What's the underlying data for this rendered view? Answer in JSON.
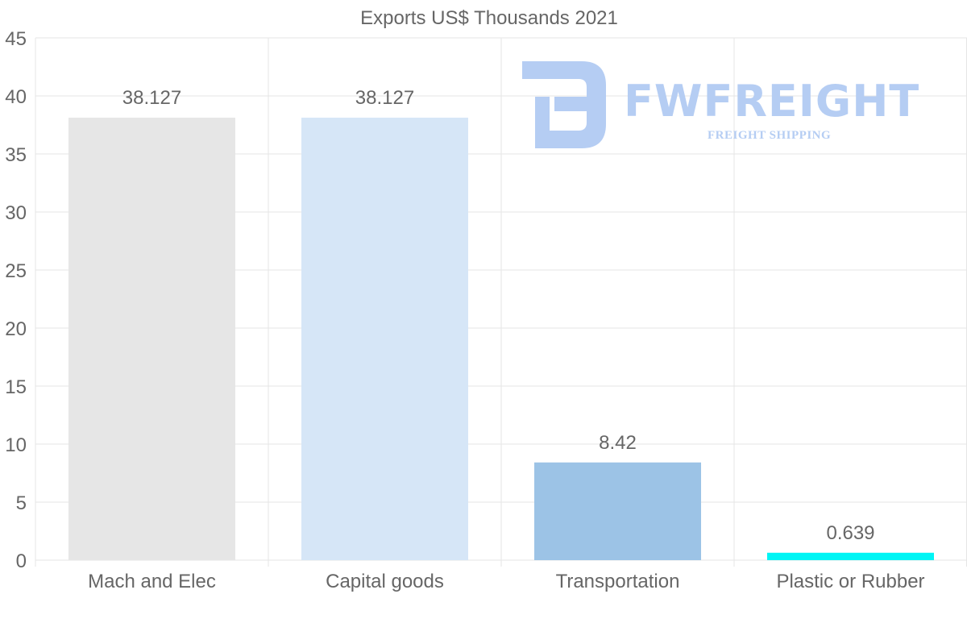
{
  "chart_data": {
    "type": "bar",
    "title": "Exports US$ Thousands 2021",
    "categories": [
      "Mach and Elec",
      "Capital goods",
      "Transportation",
      "Plastic or Rubber"
    ],
    "values": [
      38.127,
      38.127,
      8.42,
      0.639
    ],
    "value_labels": [
      "38.127",
      "38.127",
      "8.42",
      "0.639"
    ],
    "bar_colors": [
      "#e6e6e6",
      "#d6e6f7",
      "#9cc3e6",
      "#00f5f5"
    ],
    "xlabel": "",
    "ylabel": "",
    "ylim": [
      0,
      45
    ],
    "yticks": [
      0,
      5,
      10,
      15,
      20,
      25,
      30,
      35,
      40,
      45
    ],
    "ytick_labels": [
      "0",
      "5",
      "10",
      "15",
      "20",
      "25",
      "30",
      "35",
      "40",
      "45"
    ],
    "grid": true,
    "legend": "none"
  },
  "watermark": {
    "brand": "FWFREIGHT",
    "tagline": "FREIGHT SHIPPING"
  },
  "colors": {
    "grid": "#e5e5e5",
    "text": "#666666",
    "watermark": "#b5cdf3"
  }
}
